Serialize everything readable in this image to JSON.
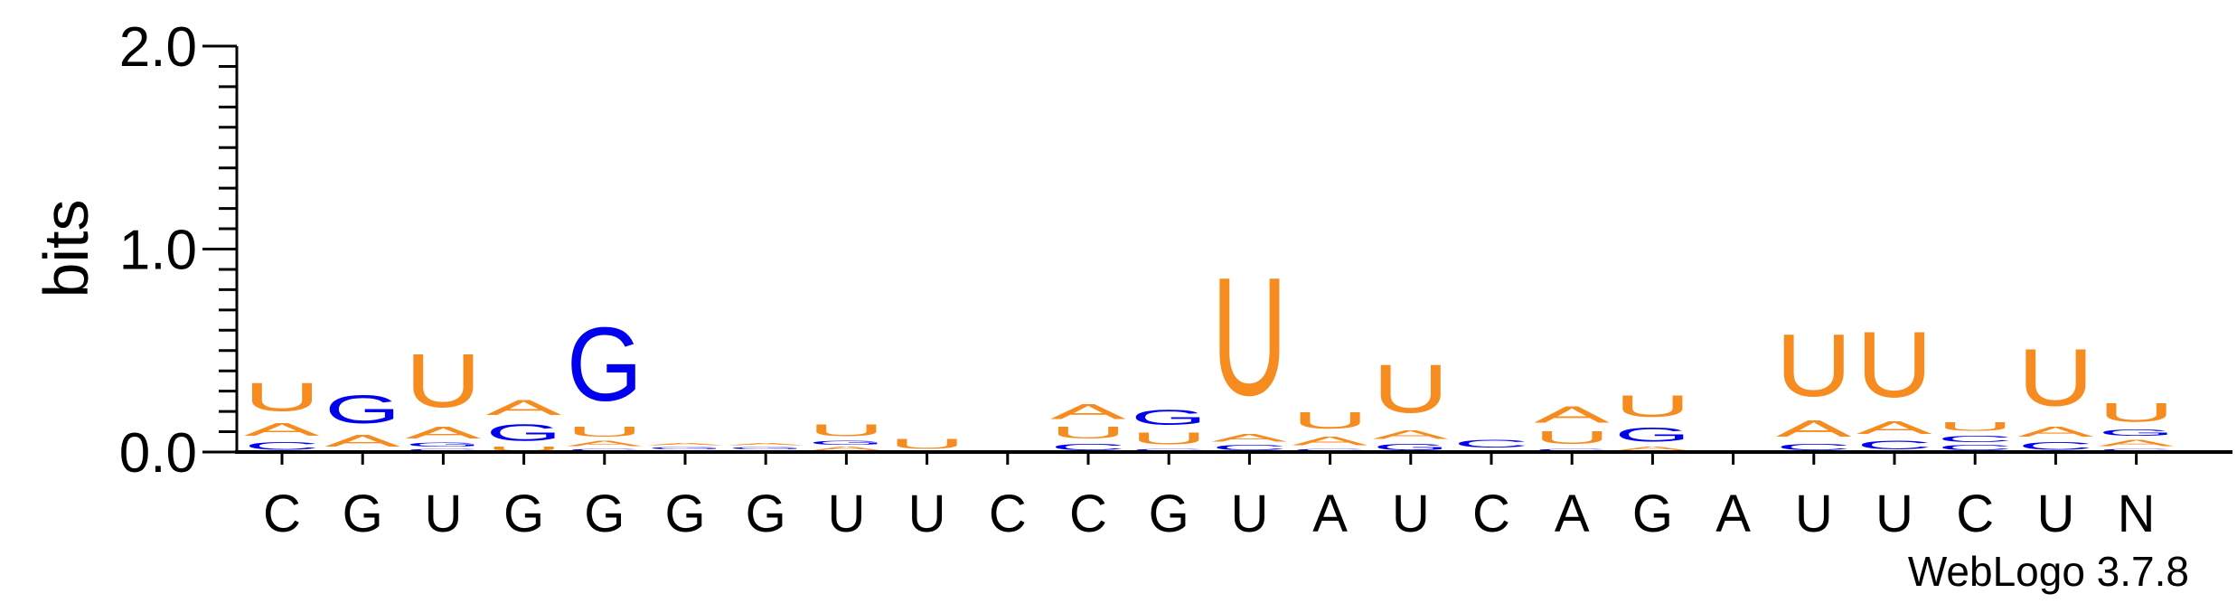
{
  "chart_data": {
    "type": "sequence-logo",
    "ylabel": "bits",
    "ylim": [
      0,
      2.0
    ],
    "yticks": [
      "0.0",
      "1.0",
      "2.0"
    ],
    "positions": [
      "C",
      "G",
      "U",
      "G",
      "G",
      "G",
      "G",
      "U",
      "U",
      "C",
      "C",
      "G",
      "U",
      "A",
      "U",
      "C",
      "A",
      "G",
      "A",
      "U",
      "U",
      "C",
      "U",
      "N"
    ],
    "colors": {
      "A": "#f68b1f",
      "U": "#f68b1f",
      "C": "#0000ee",
      "G": "#0000ee"
    },
    "stacks": [
      [
        {
          "l": "C",
          "h": 0.06
        },
        {
          "l": "A",
          "h": 0.1
        },
        {
          "l": "U",
          "h": 0.22
        }
      ],
      [
        {
          "l": "C",
          "h": 0.01
        },
        {
          "l": "A",
          "h": 0.09
        },
        {
          "l": "G",
          "h": 0.22
        }
      ],
      [
        {
          "l": "C",
          "h": 0.02
        },
        {
          "l": "G",
          "h": 0.03
        },
        {
          "l": "A",
          "h": 0.09
        },
        {
          "l": "U",
          "h": 0.42
        }
      ],
      [
        {
          "l": "U",
          "h": 0.03
        },
        {
          "l": "G",
          "h": 0.13
        },
        {
          "l": "A",
          "h": 0.12
        }
      ],
      [
        {
          "l": "C",
          "h": 0.02
        },
        {
          "l": "A",
          "h": 0.04
        },
        {
          "l": "U",
          "h": 0.08
        },
        {
          "l": "G",
          "h": 0.58
        }
      ],
      [
        {
          "l": "C",
          "h": 0.01
        },
        {
          "l": "G",
          "h": 0.02
        },
        {
          "l": "A",
          "h": 0.02
        }
      ],
      [
        {
          "l": "C",
          "h": 0.01
        },
        {
          "l": "G",
          "h": 0.02
        },
        {
          "l": "A",
          "h": 0.02
        }
      ],
      [
        {
          "l": "A",
          "h": 0.03
        },
        {
          "l": "G",
          "h": 0.03
        },
        {
          "l": "U",
          "h": 0.09
        }
      ],
      [
        {
          "l": "U",
          "h": 0.08
        }
      ],
      [],
      [
        {
          "l": "C",
          "h": 0.05
        },
        {
          "l": "U",
          "h": 0.09
        },
        {
          "l": "A",
          "h": 0.12
        }
      ],
      [
        {
          "l": "C",
          "h": 0.02
        },
        {
          "l": "U",
          "h": 0.09
        },
        {
          "l": "G",
          "h": 0.12
        }
      ],
      [
        {
          "l": "C",
          "h": 0.04
        },
        {
          "l": "A",
          "h": 0.06
        },
        {
          "l": "U",
          "h": 0.93
        }
      ],
      [
        {
          "l": "C",
          "h": 0.02
        },
        {
          "l": "A",
          "h": 0.07
        },
        {
          "l": "U",
          "h": 0.13
        }
      ],
      [
        {
          "l": "G",
          "h": 0.05
        },
        {
          "l": "A",
          "h": 0.07
        },
        {
          "l": "U",
          "h": 0.38
        }
      ],
      [
        {
          "l": "G",
          "h": 0.01
        },
        {
          "l": "C",
          "h": 0.06
        }
      ],
      [
        {
          "l": "C",
          "h": 0.02
        },
        {
          "l": "U",
          "h": 0.1
        },
        {
          "l": "A",
          "h": 0.13
        }
      ],
      [
        {
          "l": "A",
          "h": 0.03
        },
        {
          "l": "G",
          "h": 0.11
        },
        {
          "l": "U",
          "h": 0.17
        }
      ],
      [],
      [
        {
          "l": "C",
          "h": 0.05
        },
        {
          "l": "A",
          "h": 0.13
        },
        {
          "l": "U",
          "h": 0.49
        }
      ],
      [
        {
          "l": "C",
          "h": 0.07
        },
        {
          "l": "A",
          "h": 0.1
        },
        {
          "l": "U",
          "h": 0.52
        }
      ],
      [
        {
          "l": "C",
          "h": 0.04
        },
        {
          "l": "C",
          "h": 0.05
        },
        {
          "l": "U",
          "h": 0.07
        }
      ],
      [
        {
          "l": "C",
          "h": 0.06
        },
        {
          "l": "A",
          "h": 0.08
        },
        {
          "l": "U",
          "h": 0.45
        }
      ],
      [
        {
          "l": "C",
          "h": 0.02
        },
        {
          "l": "A",
          "h": 0.05
        },
        {
          "l": "G",
          "h": 0.05
        },
        {
          "l": "U",
          "h": 0.15
        }
      ]
    ],
    "credit": "WebLogo 3.7.8"
  }
}
